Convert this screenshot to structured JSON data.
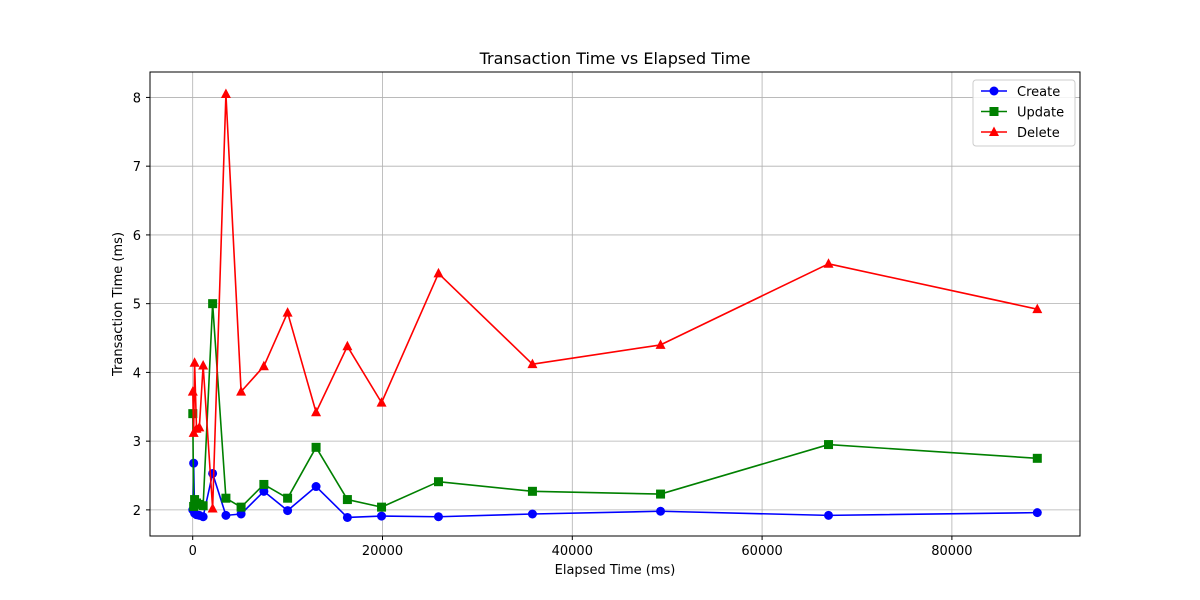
{
  "chart_data": {
    "type": "line",
    "title": "Transaction Time vs Elapsed Time",
    "xlabel": "Elapsed Time (ms)",
    "ylabel": "Transaction Time (ms)",
    "xlim": [
      -4500,
      93500
    ],
    "ylim": [
      1.62,
      8.37
    ],
    "xticks": [
      0,
      20000,
      40000,
      60000,
      80000
    ],
    "yticks": [
      2,
      3,
      4,
      5,
      6,
      7,
      8
    ],
    "grid": true,
    "legend_position": "top-right",
    "x": [
      10,
      100,
      200,
      400,
      700,
      1100,
      2100,
      3500,
      5100,
      7500,
      10000,
      13000,
      16300,
      19900,
      25900,
      35800,
      49300,
      67000,
      89000
    ],
    "series": [
      {
        "name": "Create",
        "color": "#0000ff",
        "marker": "circle",
        "values": [
          2.0,
          2.68,
          1.95,
          1.93,
          1.92,
          1.9,
          2.53,
          1.92,
          1.94,
          2.27,
          1.99,
          2.34,
          1.89,
          1.91,
          1.9,
          1.94,
          1.98,
          1.92,
          1.96
        ]
      },
      {
        "name": "Update",
        "color": "#008000",
        "marker": "square",
        "values": [
          3.4,
          2.05,
          2.15,
          2.1,
          2.08,
          2.06,
          5.0,
          2.17,
          2.04,
          2.37,
          2.17,
          2.91,
          2.15,
          2.04,
          2.41,
          2.27,
          2.23,
          2.95,
          2.75
        ]
      },
      {
        "name": "Delete",
        "color": "#ff0000",
        "marker": "triangle",
        "values": [
          3.72,
          3.12,
          4.14,
          3.18,
          3.2,
          4.1,
          2.02,
          8.05,
          3.72,
          4.09,
          4.87,
          3.42,
          4.38,
          3.56,
          5.44,
          4.12,
          4.4,
          5.58,
          4.92
        ]
      }
    ]
  }
}
